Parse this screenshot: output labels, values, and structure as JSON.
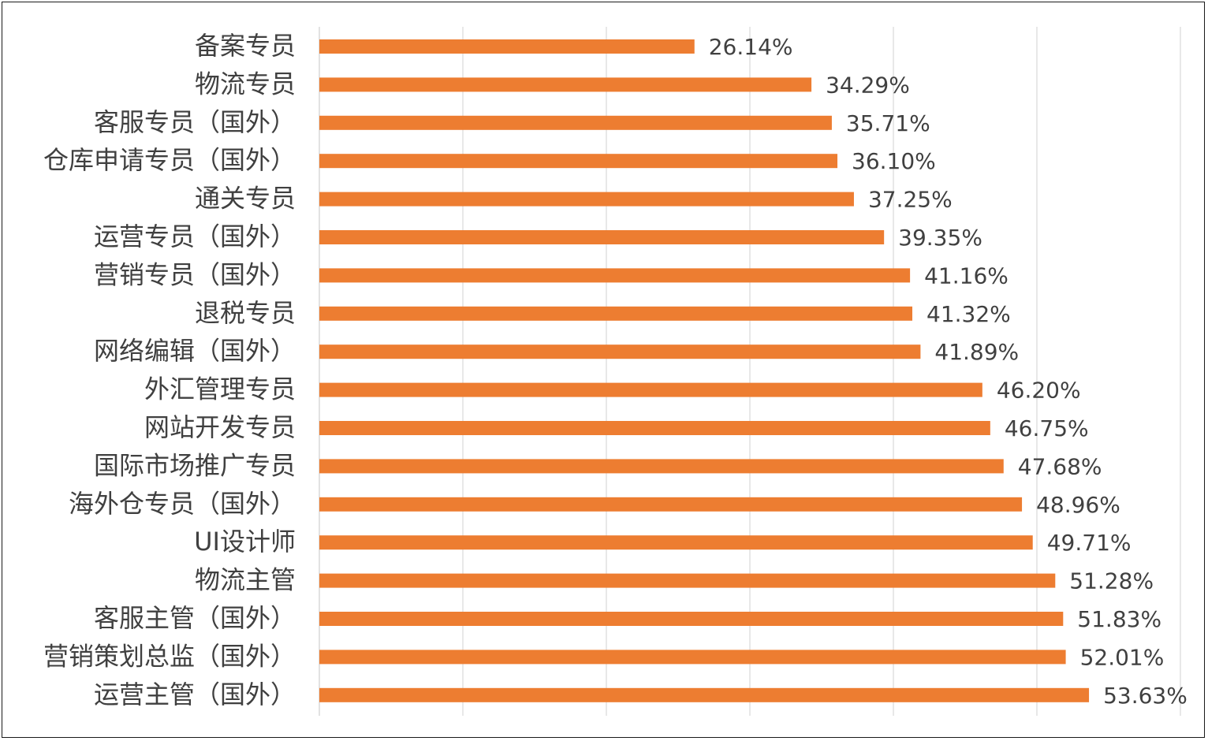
{
  "chart_data": {
    "type": "bar",
    "orientation": "horizontal",
    "title": "",
    "xlabel": "",
    "ylabel": "",
    "xlim": [
      0,
      60
    ],
    "x_major_step": 10,
    "grid": true,
    "legend": "none",
    "bar_color": "#ED7D31",
    "categories": [
      "备案专员",
      "物流专员",
      "客服专员（国外）",
      "仓库申请专员（国外）",
      "通关专员",
      "运营专员（国外）",
      "营销专员（国外）",
      "退税专员",
      "网络编辑（国外）",
      "外汇管理专员",
      "网站开发专员",
      "国际市场推广专员",
      "海外仓专员（国外）",
      "UI设计师",
      "物流主管",
      "客服主管（国外）",
      "营销策划总监（国外）",
      "运营主管（国外）"
    ],
    "values": [
      26.14,
      34.29,
      35.71,
      36.1,
      37.25,
      39.35,
      41.16,
      41.32,
      41.89,
      46.2,
      46.75,
      47.68,
      48.96,
      49.71,
      51.28,
      51.83,
      52.01,
      53.63
    ],
    "value_labels": [
      "26.14%",
      "34.29%",
      "35.71%",
      "36.10%",
      "37.25%",
      "39.35%",
      "41.16%",
      "41.32%",
      "41.89%",
      "46.20%",
      "46.75%",
      "47.68%",
      "48.96%",
      "49.71%",
      "51.28%",
      "51.83%",
      "52.01%",
      "53.63%"
    ]
  }
}
